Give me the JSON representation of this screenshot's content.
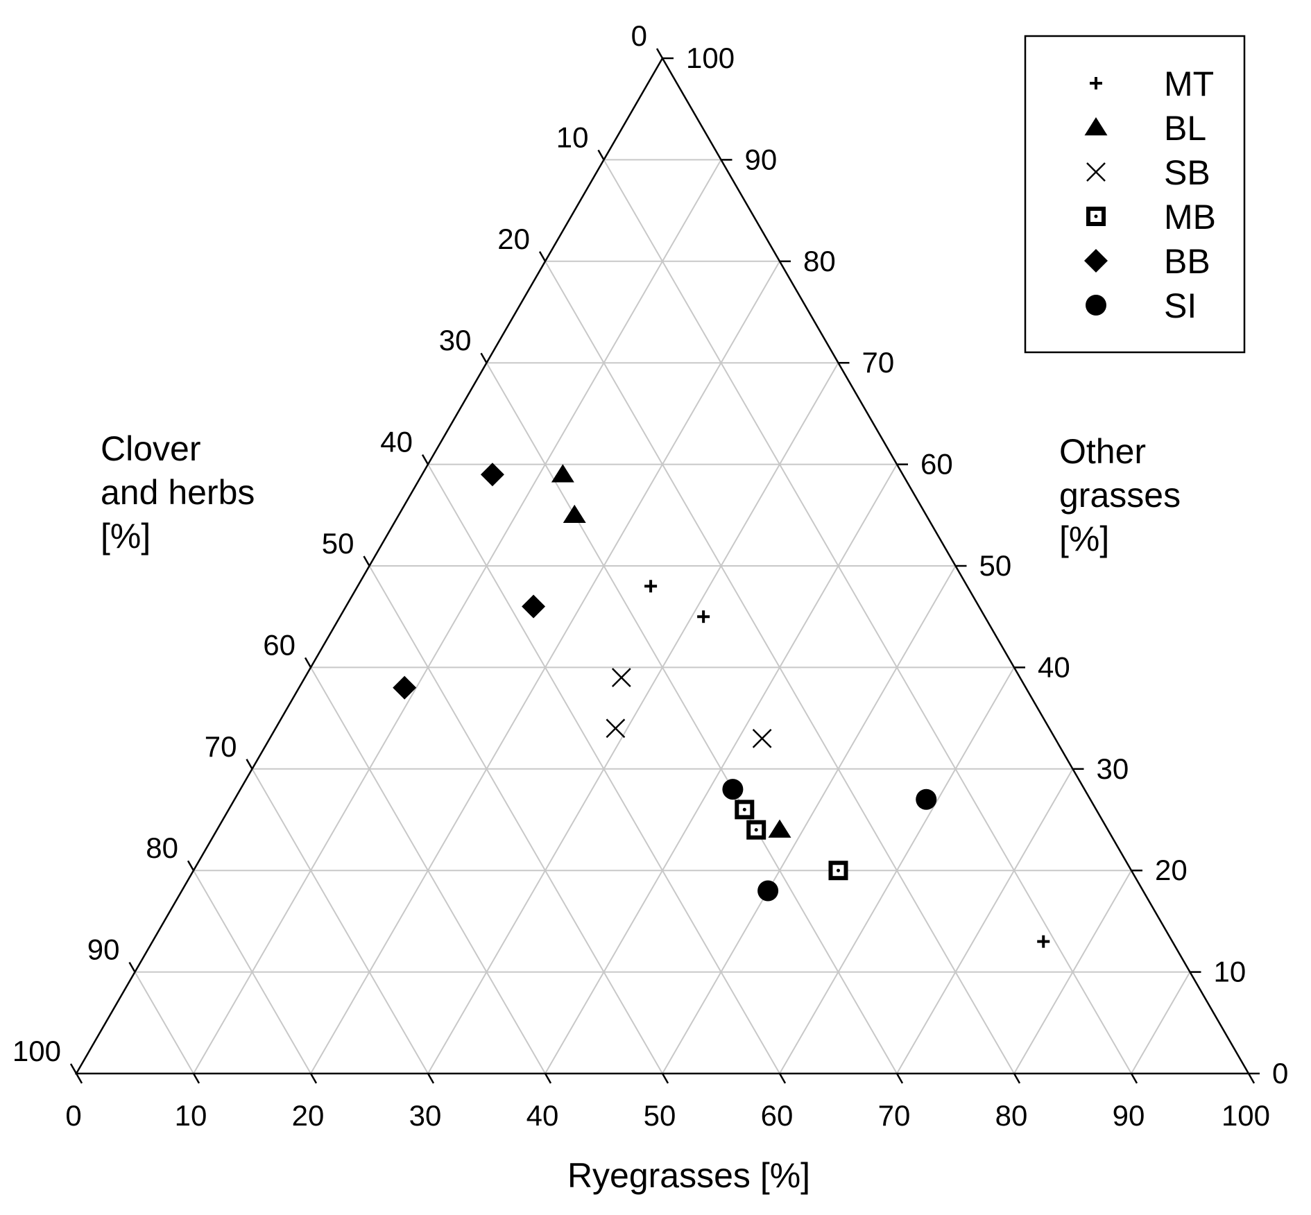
{
  "chart_data": {
    "type": "scatter",
    "subtype": "ternary",
    "axes": {
      "bottom": {
        "label": "Ryegrasses [%]",
        "ticks": [
          "0",
          "10",
          "20",
          "30",
          "40",
          "50",
          "60",
          "70",
          "80",
          "90",
          "100"
        ]
      },
      "left": {
        "label_lines": [
          "Clover",
          "and herbs",
          "[%]"
        ],
        "ticks": [
          "0",
          "10",
          "20",
          "30",
          "40",
          "50",
          "60",
          "70",
          "80",
          "90",
          "100"
        ]
      },
      "right": {
        "label_lines": [
          "Other",
          "grasses",
          "[%]"
        ],
        "ticks": [
          "0",
          "10",
          "20",
          "30",
          "40",
          "50",
          "60",
          "70",
          "80",
          "90",
          "100"
        ]
      }
    },
    "grid": true,
    "grid_step": 10,
    "legend_position": "top-right",
    "series": [
      {
        "name": "MT",
        "marker": "plus",
        "points": [
          {
            "ryegrasses": 25,
            "other_grasses": 48,
            "clover_herbs": 27
          },
          {
            "ryegrasses": 31,
            "other_grasses": 45,
            "clover_herbs": 24
          },
          {
            "ryegrasses": 76,
            "other_grasses": 13,
            "clover_herbs": 11
          }
        ]
      },
      {
        "name": "BL",
        "marker": "triangle",
        "points": [
          {
            "ryegrasses": 12,
            "other_grasses": 59,
            "clover_herbs": 29
          },
          {
            "ryegrasses": 15,
            "other_grasses": 55,
            "clover_herbs": 30
          },
          {
            "ryegrasses": 48,
            "other_grasses": 24,
            "clover_herbs": 28
          }
        ]
      },
      {
        "name": "SB",
        "marker": "x",
        "points": [
          {
            "ryegrasses": 27,
            "other_grasses": 39,
            "clover_herbs": 34
          },
          {
            "ryegrasses": 29,
            "other_grasses": 34,
            "clover_herbs": 37
          },
          {
            "ryegrasses": 42,
            "other_grasses": 33,
            "clover_herbs": 25
          }
        ]
      },
      {
        "name": "MB",
        "marker": "square",
        "points": [
          {
            "ryegrasses": 44,
            "other_grasses": 26,
            "clover_herbs": 30
          },
          {
            "ryegrasses": 46,
            "other_grasses": 24,
            "clover_herbs": 30
          },
          {
            "ryegrasses": 55,
            "other_grasses": 20,
            "clover_herbs": 25
          }
        ]
      },
      {
        "name": "BB",
        "marker": "diamond",
        "points": [
          {
            "ryegrasses": 6,
            "other_grasses": 59,
            "clover_herbs": 35
          },
          {
            "ryegrasses": 16,
            "other_grasses": 46,
            "clover_herbs": 38
          },
          {
            "ryegrasses": 9,
            "other_grasses": 38,
            "clover_herbs": 53
          }
        ]
      },
      {
        "name": "SI",
        "marker": "circle",
        "points": [
          {
            "ryegrasses": 42,
            "other_grasses": 28,
            "clover_herbs": 30
          },
          {
            "ryegrasses": 59,
            "other_grasses": 27,
            "clover_herbs": 14
          },
          {
            "ryegrasses": 50,
            "other_grasses": 18,
            "clover_herbs": 32
          }
        ]
      }
    ]
  }
}
